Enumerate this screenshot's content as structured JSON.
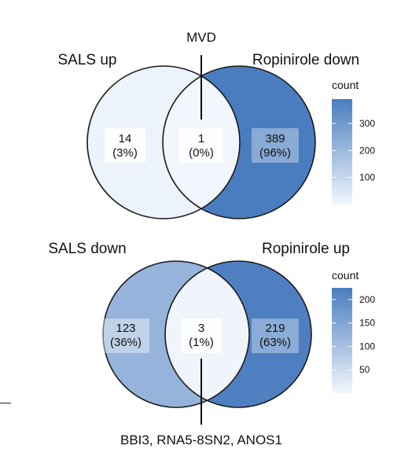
{
  "figure": {
    "colors": {
      "scale_low": "#f2f7fd",
      "scale_high": "#4a7dbf",
      "outline": "#1a1a1a",
      "label_box": "#ffffff"
    },
    "panels": [
      {
        "id": "top",
        "top_annotation": "MVD",
        "bottom_annotation": "",
        "left_set": "SALS up",
        "right_set": "Ropinirole down",
        "regions": {
          "left": {
            "count": "14",
            "percent": "(3%)",
            "value": 14
          },
          "overlap": {
            "count": "1",
            "percent": "(0%)",
            "value": 1
          },
          "right": {
            "count": "389",
            "percent": "(96%)",
            "value": 389
          }
        },
        "legend": {
          "title": "count",
          "max": 390,
          "ticks": [
            "300",
            "200",
            "100"
          ],
          "tick_values": [
            300,
            200,
            100
          ]
        }
      },
      {
        "id": "bottom",
        "top_annotation": "",
        "bottom_annotation": "BBI3, RNA5-8SN2, ANOS1",
        "left_set": "SALS down",
        "right_set": "Ropinirole up",
        "regions": {
          "left": {
            "count": "123",
            "percent": "(36%)",
            "value": 123
          },
          "overlap": {
            "count": "3",
            "percent": "(1%)",
            "value": 3
          },
          "right": {
            "count": "219",
            "percent": "(63%)",
            "value": 219
          }
        },
        "legend": {
          "title": "count",
          "max": 225,
          "ticks": [
            "200",
            "150",
            "100",
            "50"
          ],
          "tick_values": [
            200,
            150,
            100,
            50
          ]
        }
      }
    ]
  }
}
